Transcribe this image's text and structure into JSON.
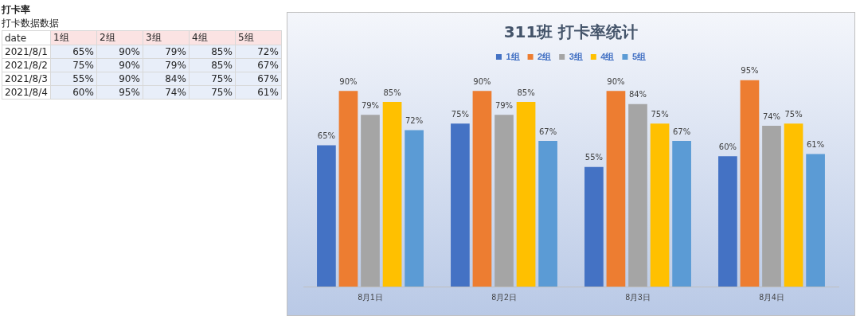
{
  "chart_data": {
    "type": "bar",
    "title": "311班 打卡率统计",
    "categories": [
      "8月1日",
      "8月2日",
      "8月3日",
      "8月4日"
    ],
    "series": [
      {
        "name": "1组",
        "color": "#4472c4",
        "values": [
          65,
          75,
          55,
          60
        ],
        "value_labels": [
          "65%",
          "75%",
          "55%",
          "60%"
        ]
      },
      {
        "name": "2组",
        "color": "#ed7d31",
        "values": [
          90,
          90,
          90,
          95
        ],
        "value_labels": [
          "90%",
          "90%",
          "90%",
          "95%"
        ]
      },
      {
        "name": "3组",
        "color": "#a5a5a5",
        "values": [
          79,
          79,
          84,
          74
        ],
        "value_labels": [
          "79%",
          "79%",
          "84%",
          "74%"
        ]
      },
      {
        "name": "4组",
        "color": "#ffc000",
        "values": [
          85,
          85,
          75,
          75
        ],
        "value_labels": [
          "85%",
          "85%",
          "75%",
          "75%"
        ]
      },
      {
        "name": "5组",
        "color": "#5b9bd5",
        "values": [
          72,
          67,
          67,
          61
        ],
        "value_labels": [
          "72%",
          "67%",
          "67%",
          "61%"
        ]
      }
    ],
    "tick_labels": "x",
    "grid": false,
    "legend": "top",
    "annotations": [
      "打卡率",
      "打卡数据数据",
      "date",
      "2021/8/1",
      "2021/8/2",
      "2021/8/3",
      "2021/8/4"
    ]
  }
}
